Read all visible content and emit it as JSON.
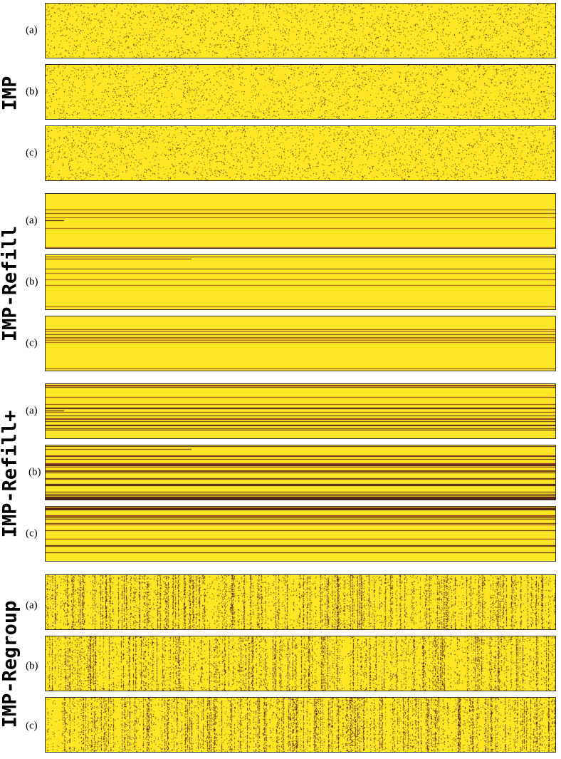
{
  "colors": {
    "background_yellow": "#FDE725",
    "mask_dark": "#3B0A18",
    "mask_mid": "#7A1E1E",
    "border": "#333333"
  },
  "groups": [
    {
      "method": "IMP",
      "pattern": "random",
      "panels": [
        {
          "label": "(a)"
        },
        {
          "label": "(b)"
        },
        {
          "label": "(c)"
        }
      ]
    },
    {
      "method": "IMP-Refill",
      "pattern": "rows",
      "panels": [
        {
          "label": "(a)"
        },
        {
          "label": "(b)"
        },
        {
          "label": "(c)"
        }
      ]
    },
    {
      "method": "IMP-Refill+",
      "pattern": "rows-dense",
      "panels": [
        {
          "label": "(a)"
        },
        {
          "label": "(b)"
        },
        {
          "label": "(c)"
        }
      ]
    },
    {
      "method": "IMP-Regroup",
      "pattern": "columns",
      "panels": [
        {
          "label": "(a)"
        },
        {
          "label": "(b)"
        },
        {
          "label": "(c)"
        }
      ]
    }
  ]
}
